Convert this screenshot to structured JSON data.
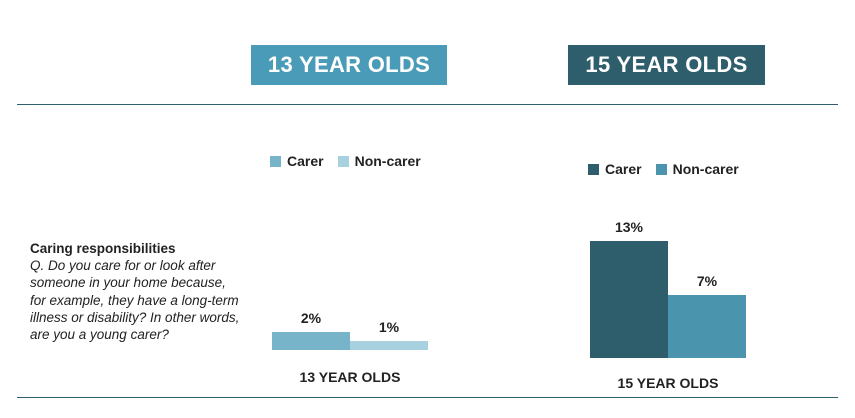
{
  "headers": [
    {
      "label": "13 YEAR OLDS",
      "color": "#4a9bb8"
    },
    {
      "label": "15 YEAR OLDS",
      "color": "#2e5d6b"
    }
  ],
  "question": {
    "title": "Caring responsibilities",
    "text": "Q. Do you care for or look after someone in your home because, for example, they have a long-term illness or disability? In other words, are you a young carer?"
  },
  "chart_data": [
    {
      "type": "bar",
      "title": "",
      "xlabel": "13 YEAR OLDS",
      "ylabel": "",
      "categories": [
        "Carer",
        "Non-carer"
      ],
      "values": [
        2,
        1
      ],
      "labels": [
        "2%",
        "1%"
      ],
      "colors": [
        "#77b3c9",
        "#a7d1de"
      ],
      "ylim": [
        0,
        13
      ],
      "legend": "top"
    },
    {
      "type": "bar",
      "title": "",
      "xlabel": "15 YEAR OLDS",
      "ylabel": "",
      "categories": [
        "Carer",
        "Non-carer"
      ],
      "values": [
        13,
        7
      ],
      "labels": [
        "13%",
        "7%"
      ],
      "colors": [
        "#2e5d6b",
        "#4a94ae"
      ],
      "ylim": [
        0,
        13
      ],
      "legend": "top"
    }
  ]
}
